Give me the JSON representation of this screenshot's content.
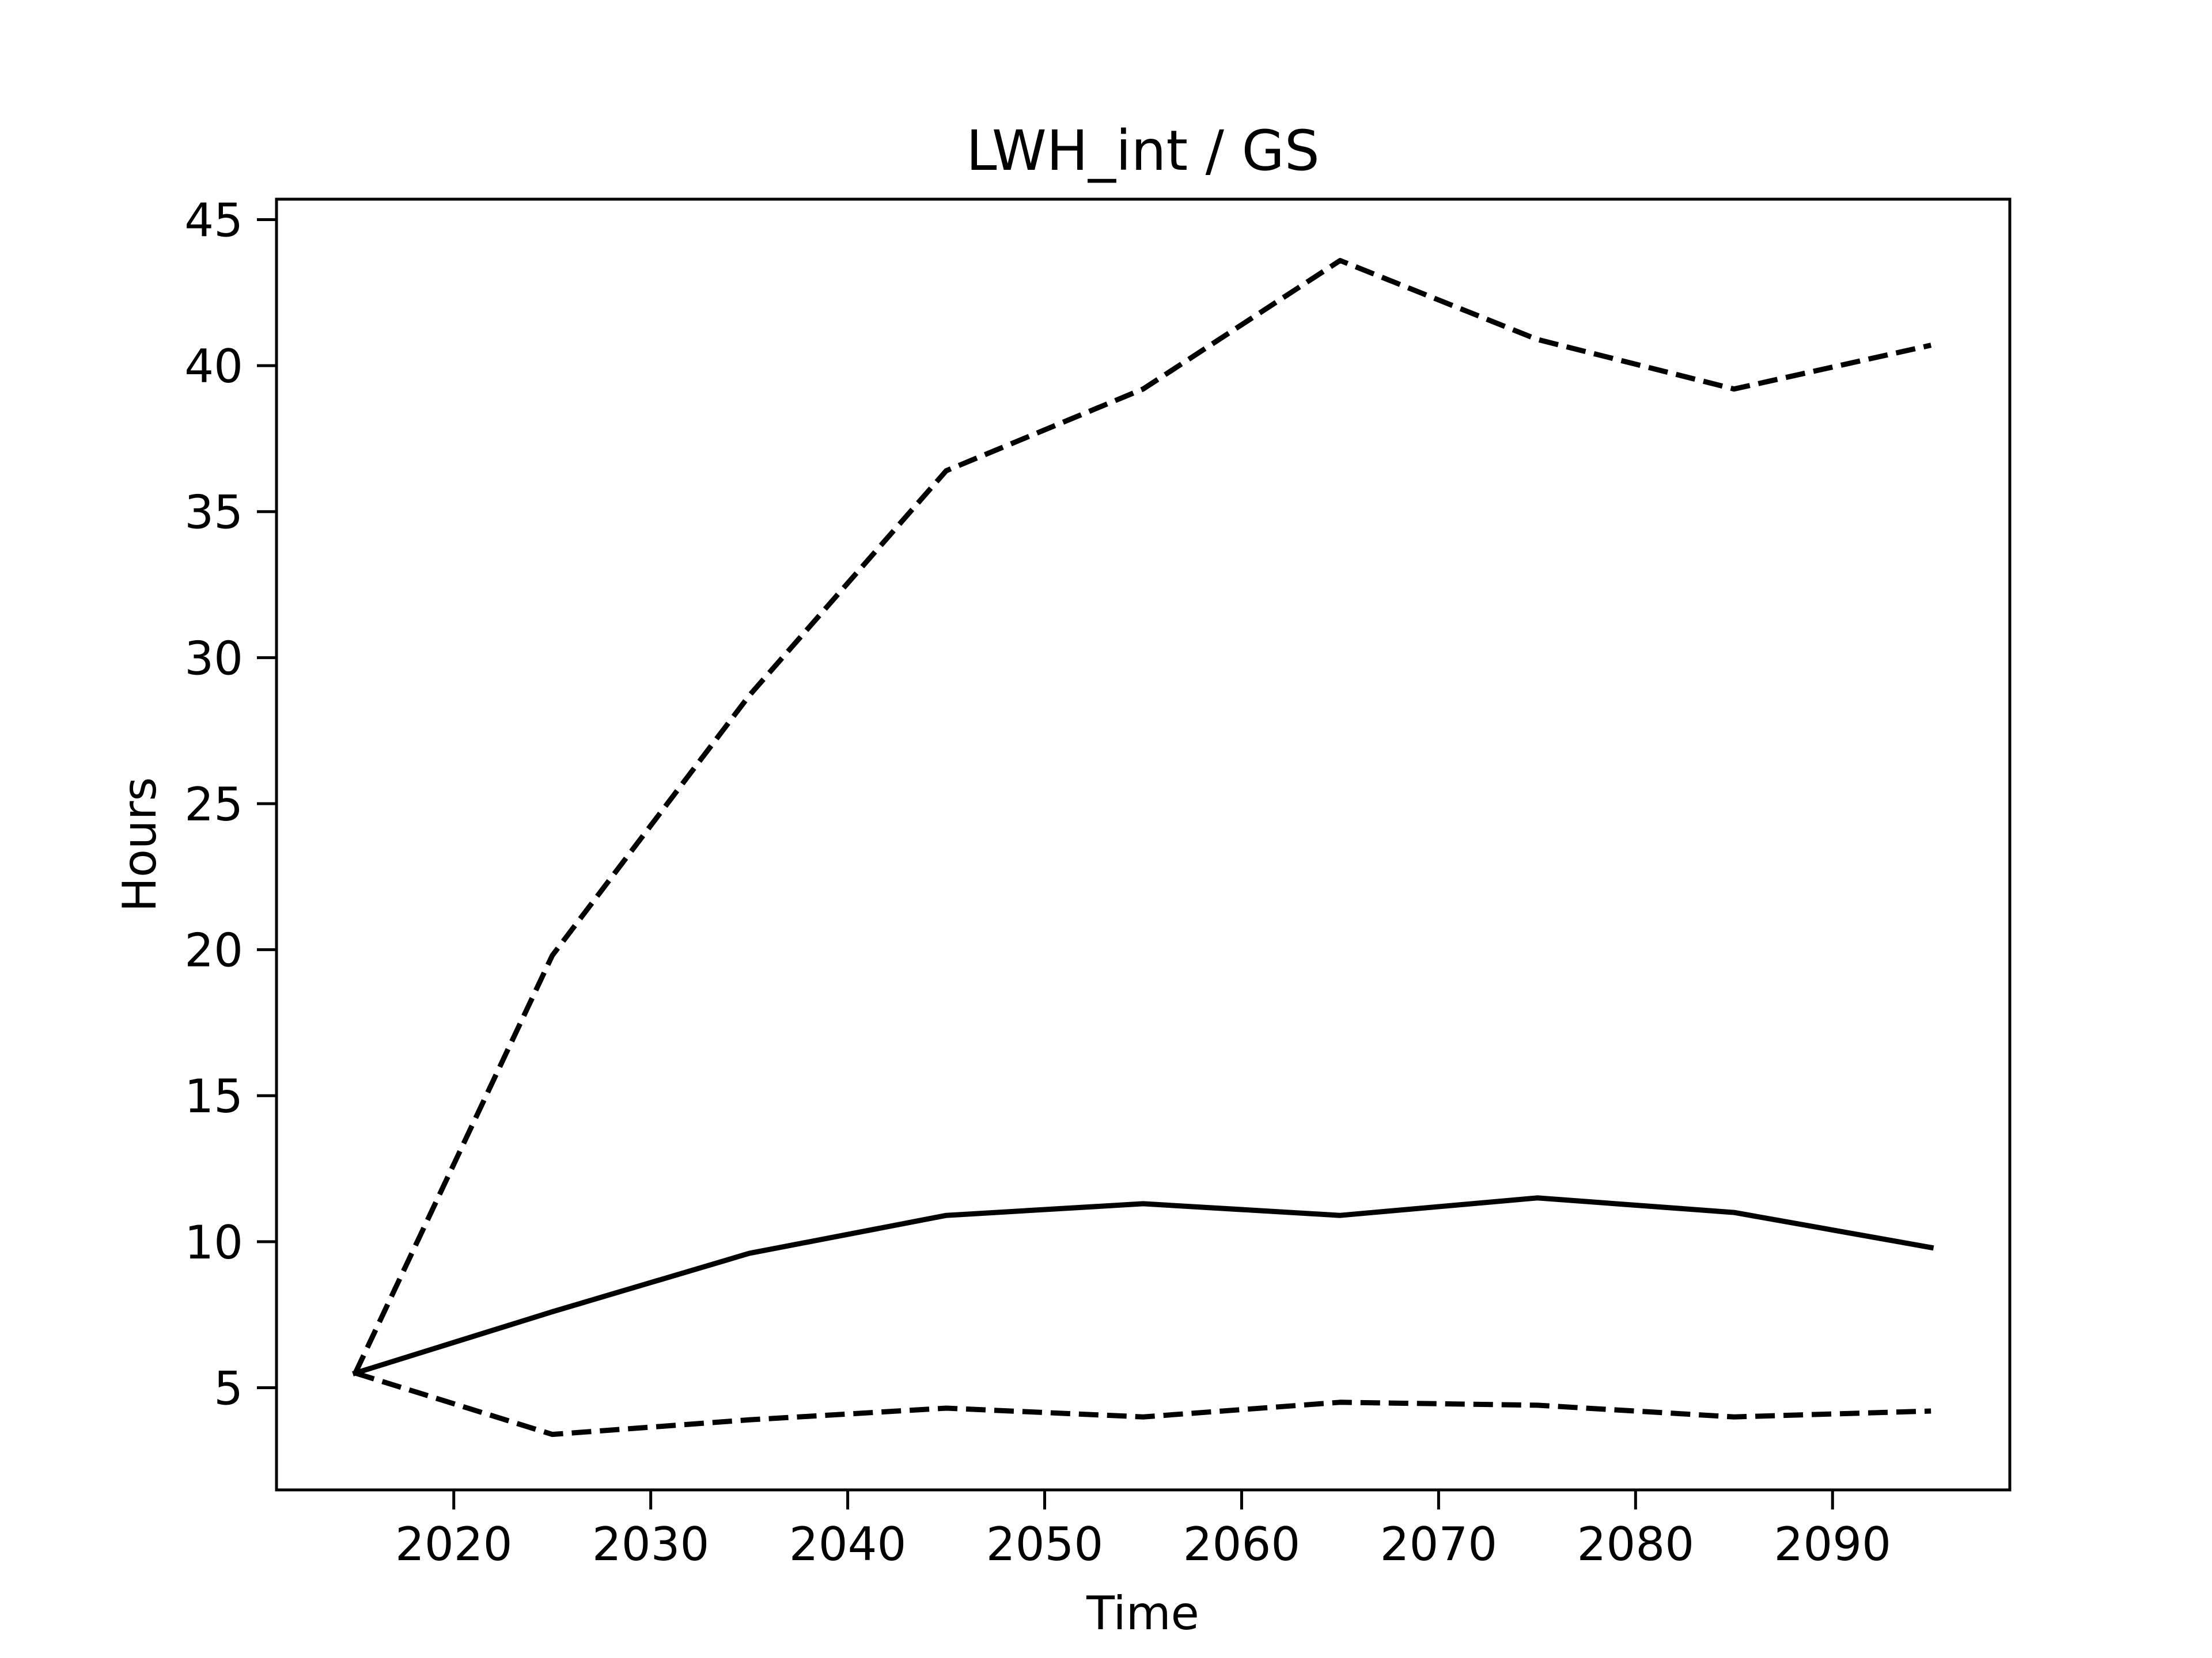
{
  "chart_data": {
    "type": "line",
    "title": "LWH_int / GS",
    "xlabel": "Time",
    "ylabel": "Hours",
    "xlim": [
      2011,
      2099
    ],
    "ylim": [
      1.5,
      45.7
    ],
    "xticks": [
      2020,
      2030,
      2040,
      2050,
      2060,
      2070,
      2080,
      2090
    ],
    "yticks": [
      5,
      10,
      15,
      20,
      25,
      30,
      35,
      40,
      45
    ],
    "grid": false,
    "legend": "none",
    "x": [
      2015,
      2025,
      2035,
      2045,
      2055,
      2065,
      2075,
      2085,
      2095
    ],
    "series": [
      {
        "style": "dashed",
        "color": "#000000",
        "values": [
          5.5,
          19.8,
          28.7,
          36.4,
          39.2,
          43.6,
          40.9,
          39.2,
          40.7
        ]
      },
      {
        "style": "solid",
        "color": "#000000",
        "values": [
          5.5,
          7.6,
          9.6,
          10.9,
          11.3,
          10.9,
          11.5,
          11.0,
          9.8
        ]
      },
      {
        "style": "dashed",
        "color": "#000000",
        "values": [
          5.5,
          3.4,
          3.9,
          4.3,
          4.0,
          4.5,
          4.4,
          4.0,
          4.2
        ]
      }
    ]
  }
}
